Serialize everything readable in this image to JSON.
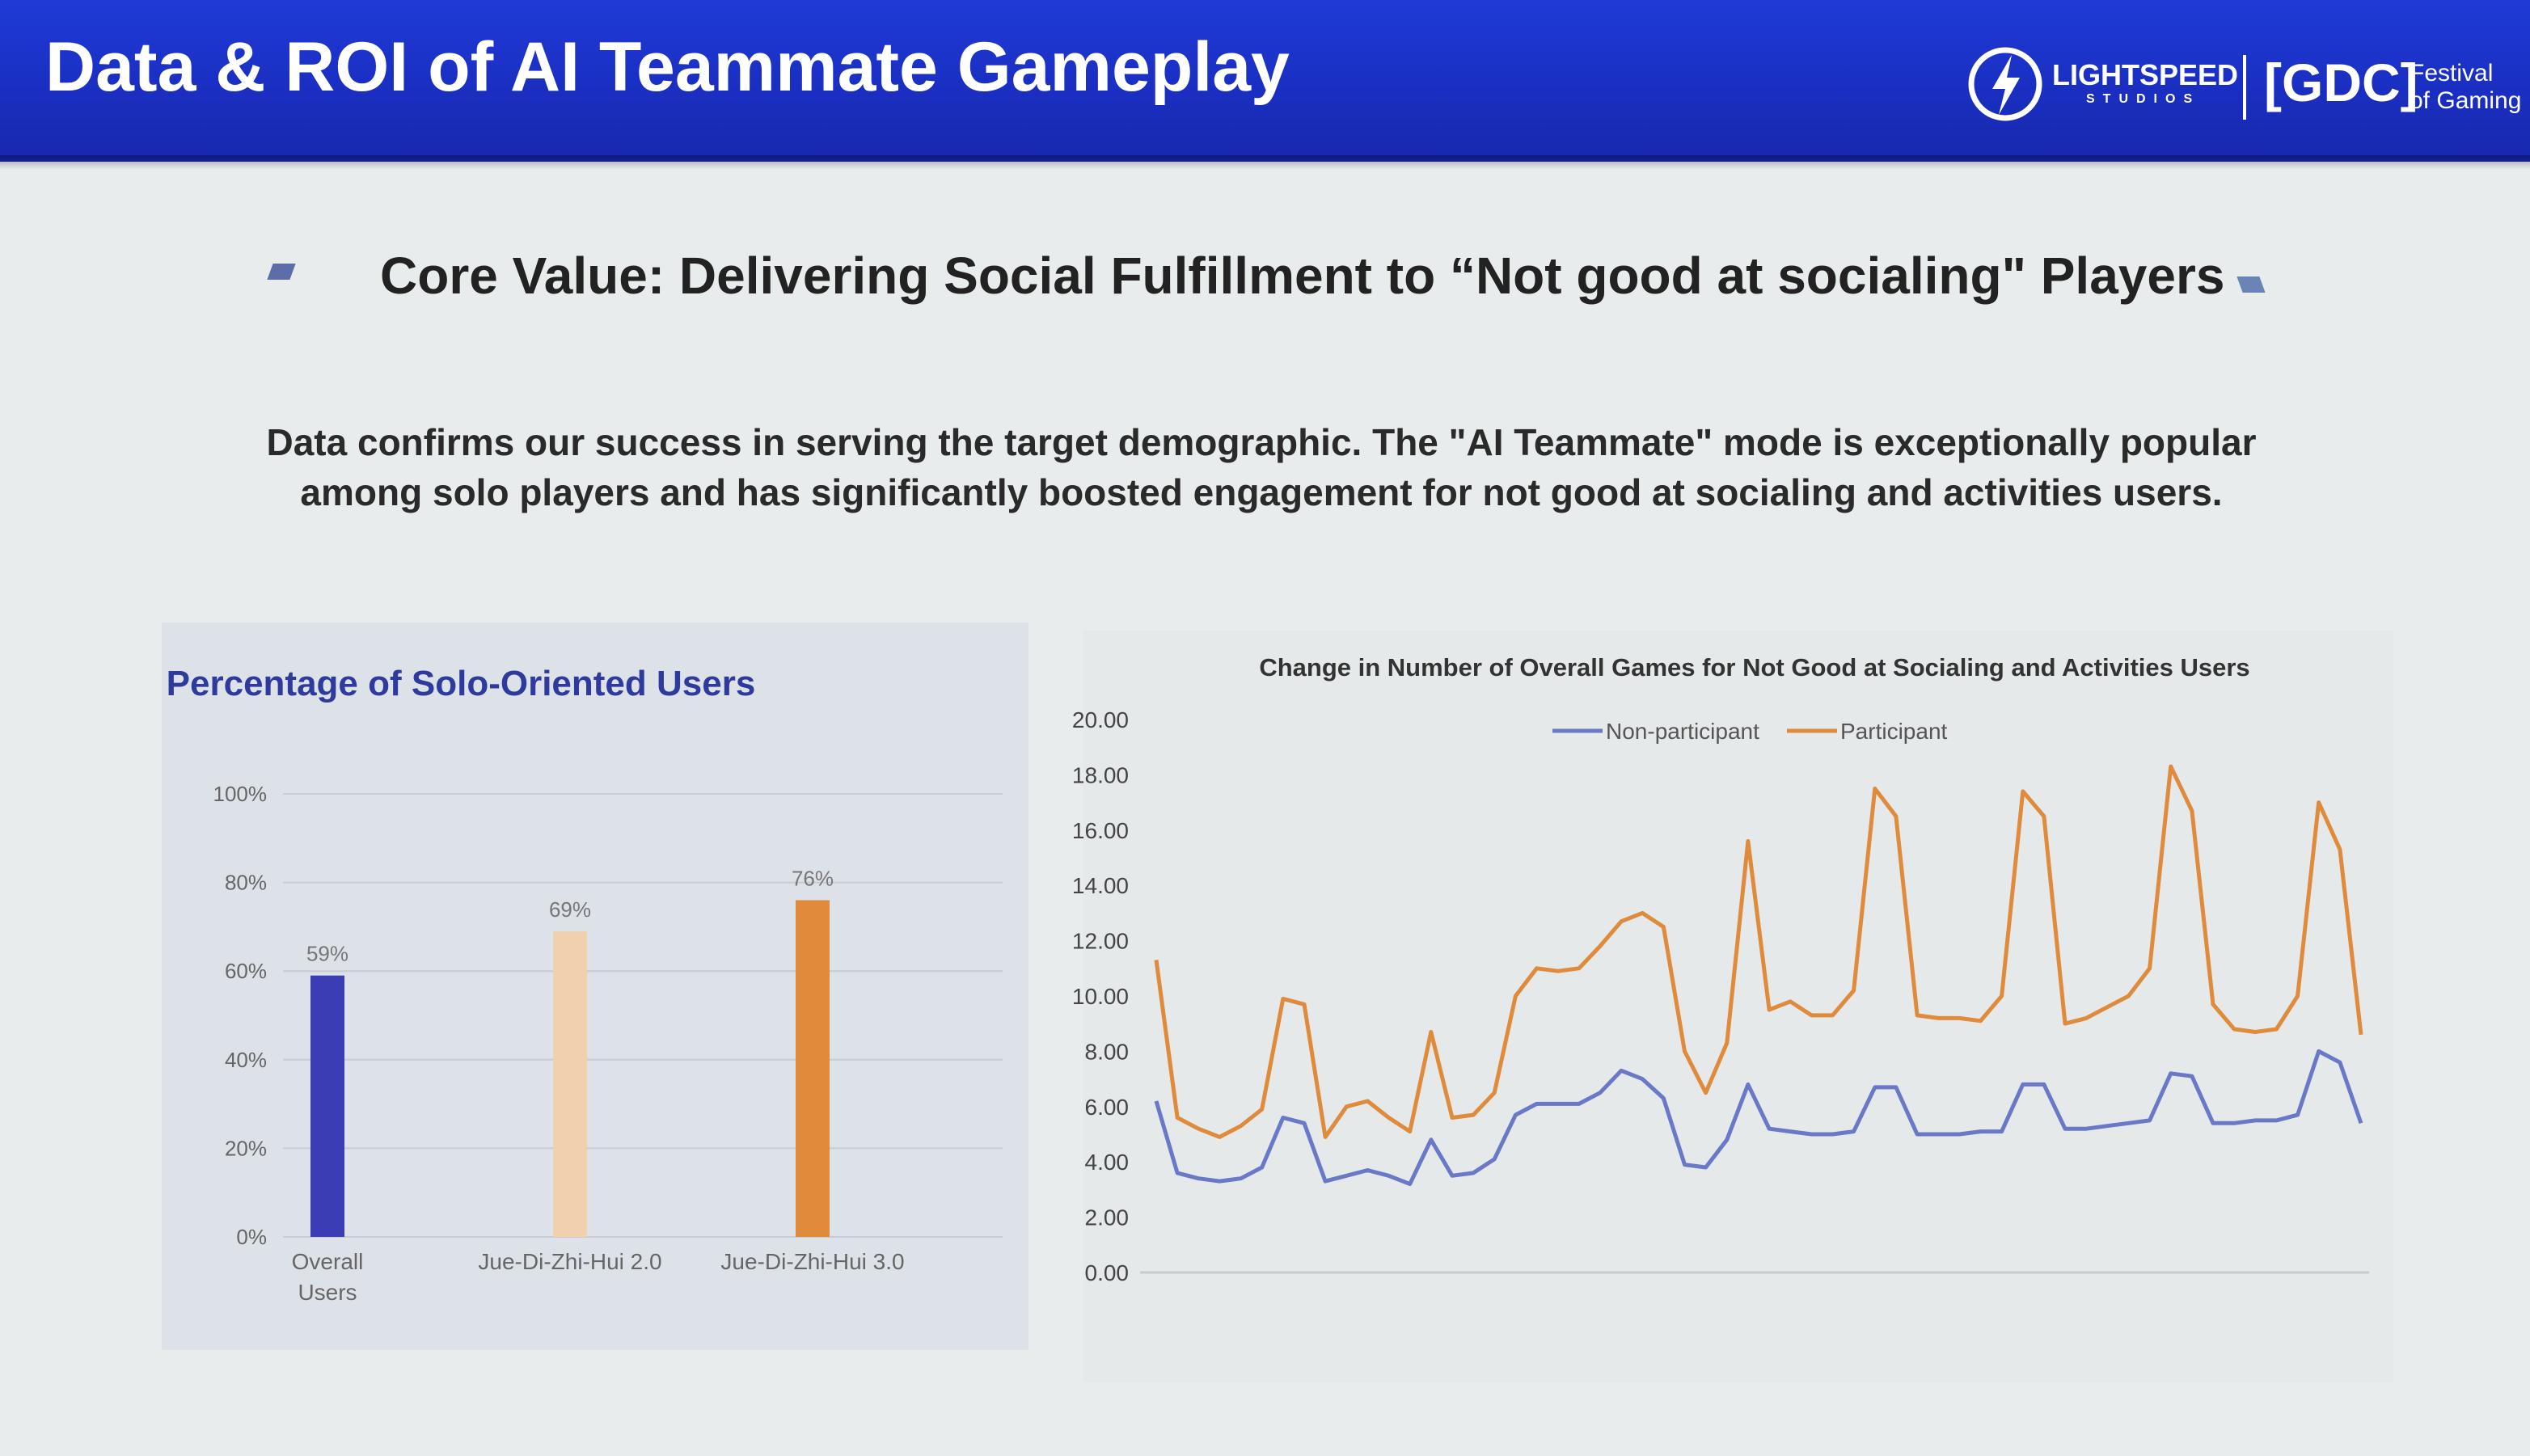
{
  "slide": {
    "title": "Data & ROI of AI Teammate Gameplay",
    "subtitle": "Core Value: Delivering Social Fulfillment to “Not good at socialing\" Players",
    "body_line1": "Data confirms our success in serving the target demographic. The \"AI Teammate\" mode is exceptionally popular",
    "body_line2": "among solo players and has significantly boosted engagement for not good at socialing and activities users.",
    "logo_lightspeed": "LIGHTSPEED",
    "logo_lightspeed_sub": "STUDIOS",
    "logo_gdc": "[GDC]",
    "logo_festival": "Festival",
    "logo_gaming": "of Gaming",
    "colors": {
      "header": "#1f3ad6",
      "accent_blue": "#3a3fb0",
      "accent_orange": "#e08a3c"
    }
  },
  "chart_data": [
    {
      "type": "bar",
      "title": "Percentage of Solo-Oriented Users",
      "categories": [
        "Overall Users",
        "Jue-Di-Zhi-Hui 2.0",
        "Jue-Di-Zhi-Hui 3.0"
      ],
      "category_lines": [
        [
          "Overall",
          "Users"
        ],
        [
          "Jue-Di-Zhi-Hui 2.0"
        ],
        [
          "Jue-Di-Zhi-Hui 3.0"
        ]
      ],
      "values": [
        59,
        69,
        76
      ],
      "value_labels": [
        "59%",
        "69%",
        "76%"
      ],
      "bar_colors": [
        "#3b3db4",
        "#f0d0ad",
        "#e08a3c"
      ],
      "ylim": [
        0,
        100
      ],
      "yticks": [
        0,
        20,
        40,
        60,
        80,
        100
      ],
      "ytick_labels": [
        "0%",
        "20%",
        "40%",
        "60%",
        "80%",
        "100%"
      ],
      "grid": true,
      "xlabel": "",
      "ylabel": ""
    },
    {
      "type": "line",
      "title": "Change in Number of Overall Games for Not Good at Socialing and Activities Users",
      "ylim": [
        0,
        20
      ],
      "yticks": [
        0,
        2,
        4,
        6,
        8,
        10,
        12,
        14,
        16,
        18,
        20
      ],
      "ytick_labels": [
        "0.00",
        "2.00",
        "4.00",
        "6.00",
        "8.00",
        "10.00",
        "12.00",
        "14.00",
        "16.00",
        "18.00",
        "20.00"
      ],
      "legend": "top",
      "grid": false,
      "xlabel": "",
      "ylabel": "",
      "series": [
        {
          "name": "Non-participant",
          "color": "#6a78c8",
          "values": [
            6.2,
            3.6,
            3.4,
            3.3,
            3.4,
            3.8,
            5.6,
            5.4,
            3.3,
            3.5,
            3.7,
            3.5,
            3.2,
            4.8,
            3.5,
            3.6,
            4.1,
            5.7,
            6.1,
            6.1,
            6.1,
            6.5,
            7.3,
            7.0,
            6.3,
            3.9,
            3.8,
            4.8,
            6.8,
            5.2,
            5.1,
            5.0,
            5.0,
            5.1,
            6.7,
            6.7,
            5.0,
            5.0,
            5.0,
            5.1,
            5.1,
            6.8,
            6.8,
            5.2,
            5.2,
            5.3,
            5.4,
            5.5,
            7.2,
            7.1,
            5.4,
            5.4,
            5.5,
            5.5,
            5.7,
            8.0,
            7.6,
            5.4
          ]
        },
        {
          "name": "Participant",
          "color": "#e08a3c",
          "values": [
            11.3,
            5.6,
            5.2,
            4.9,
            5.3,
            5.9,
            9.9,
            9.7,
            4.9,
            6.0,
            6.2,
            5.6,
            5.1,
            8.7,
            5.6,
            5.7,
            6.5,
            10.0,
            11.0,
            10.9,
            11.0,
            11.8,
            12.7,
            13.0,
            12.5,
            8.0,
            6.5,
            8.3,
            15.6,
            9.5,
            9.8,
            9.3,
            9.3,
            10.2,
            17.5,
            16.5,
            9.3,
            9.2,
            9.2,
            9.1,
            10.0,
            17.4,
            16.5,
            9.0,
            9.2,
            9.6,
            10.0,
            11.0,
            18.3,
            16.7,
            9.7,
            8.8,
            8.7,
            8.8,
            10.0,
            17.0,
            15.3,
            8.6
          ]
        }
      ]
    }
  ]
}
